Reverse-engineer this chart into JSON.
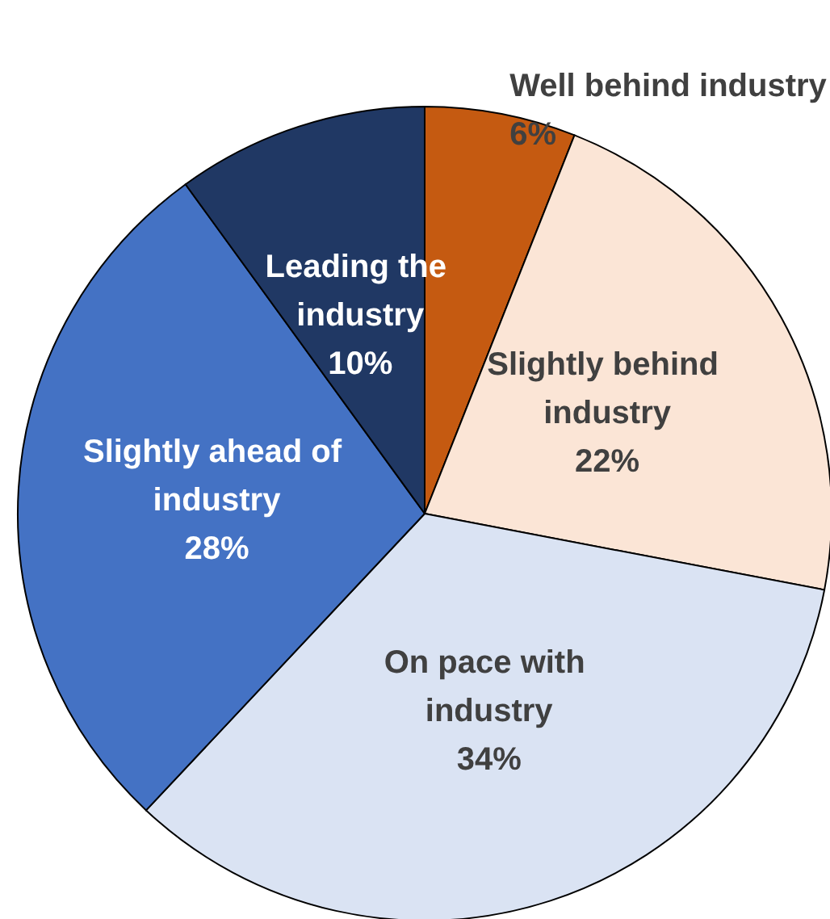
{
  "chart_data": {
    "type": "pie",
    "categories": [
      "Well behind industry",
      "Slightly behind industry",
      "On pace with industry",
      "Slightly ahead of industry",
      "Leading the industry"
    ],
    "values": [
      6,
      22,
      34,
      28,
      10
    ],
    "value_labels": [
      "6%",
      "22%",
      "34%",
      "28%",
      "10%"
    ],
    "colors": [
      "#c55a11",
      "#fbe5d6",
      "#dae3f3",
      "#4472c4",
      "#203864"
    ]
  }
}
